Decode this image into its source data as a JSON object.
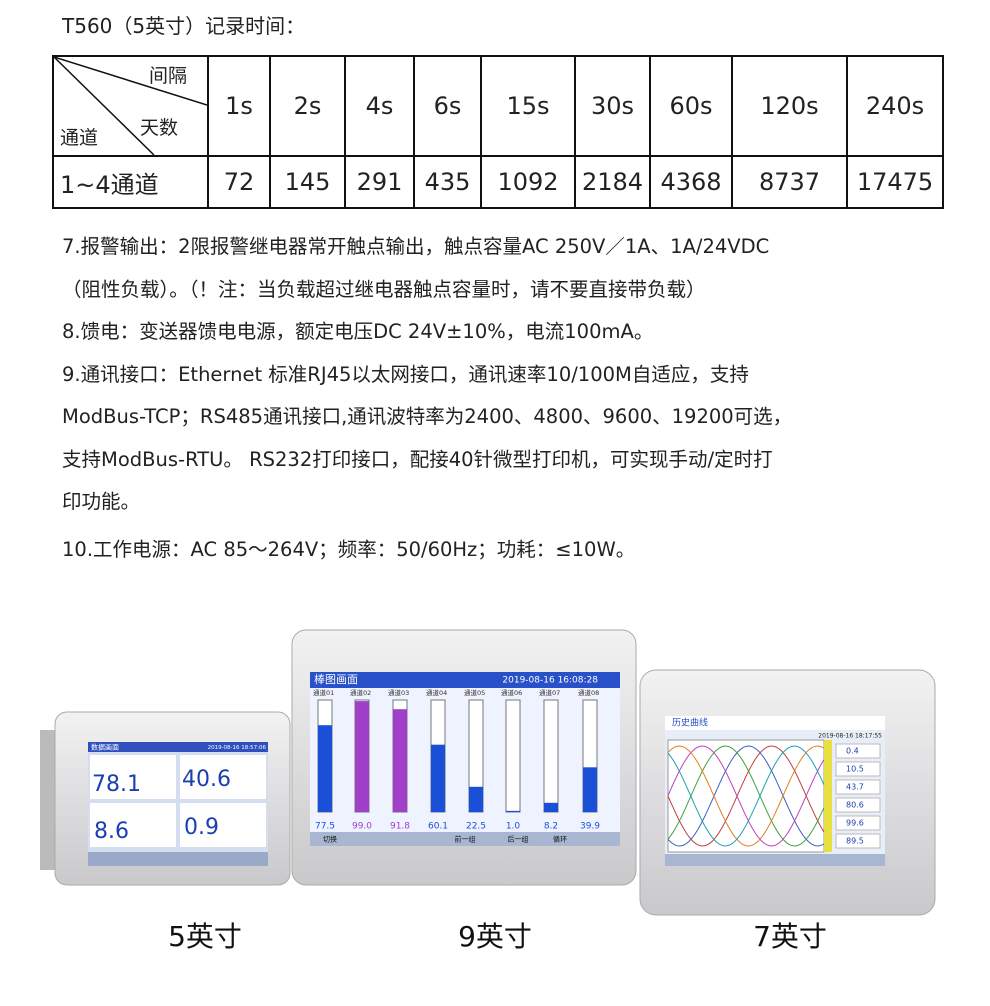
{
  "header": {
    "title": "T560（5英寸）记录时间："
  },
  "table": {
    "corner": {
      "top": "间隔",
      "middle": "天数",
      "bottom": "通道"
    },
    "columns": [
      "1s",
      "2s",
      "4s",
      "6s",
      "15s",
      "30s",
      "60s",
      "120s",
      "240s"
    ],
    "rows": [
      [
        "1~4通道",
        72,
        145,
        291,
        435,
        1092,
        2184,
        4368,
        8737,
        17475
      ]
    ]
  },
  "paragraphs": [
    "7.报警输出：2限报警继电器常开触点输出，触点容量AC 250V／1A、1A/24VDC",
    "（阻性负载）。（！注：当负载超过继电器触点容量时，请不要直接带负载）",
    "8.馈电：变送器馈电电源，额定电压DC 24V±10%，电流100mA。",
    "9.通讯接口：Ethernet 标准RJ45以太网接口，通讯速率10/100M自适应，支持",
    "ModBus-TCP；RS485通讯接口,通讯波特率为2400、4800、9600、19200可选，",
    "支持ModBus-RTU。 RS232打印接口，配接40针微型打印机，可实现手动/定时打",
    "印功能。",
    "10.工作电源：AC 85～264V；频率：50/60Hz；功耗：≤10W。"
  ],
  "devices": [
    {
      "caption": "5英寸",
      "screen_title": "数据画面",
      "datetime": "2019-08-16 18:57:06",
      "readings": [
        "78.1",
        "40.6",
        "8.6",
        "0.9"
      ]
    },
    {
      "caption": "9英寸",
      "screen_title": "棒图画面",
      "datetime": "2019-08-16 16:08:28",
      "channels": [
        "通道01",
        "通道02",
        "通道03",
        "通道04",
        "通道05",
        "通道06",
        "通道07",
        "通道08"
      ],
      "readings": [
        "77.5",
        "99.0",
        "91.8",
        "60.1",
        "22.5",
        "1.0",
        "8.2",
        "39.9"
      ],
      "buttons": [
        "切换",
        "前一组",
        "后一组",
        "循环"
      ]
    },
    {
      "caption": "7英寸",
      "screen_title": "历史曲线",
      "datetime": "2019-08-16 18:17:55",
      "readings": [
        "0.4",
        "10.5",
        "43.7",
        "80.6",
        "99.6",
        "89.5"
      ]
    }
  ]
}
